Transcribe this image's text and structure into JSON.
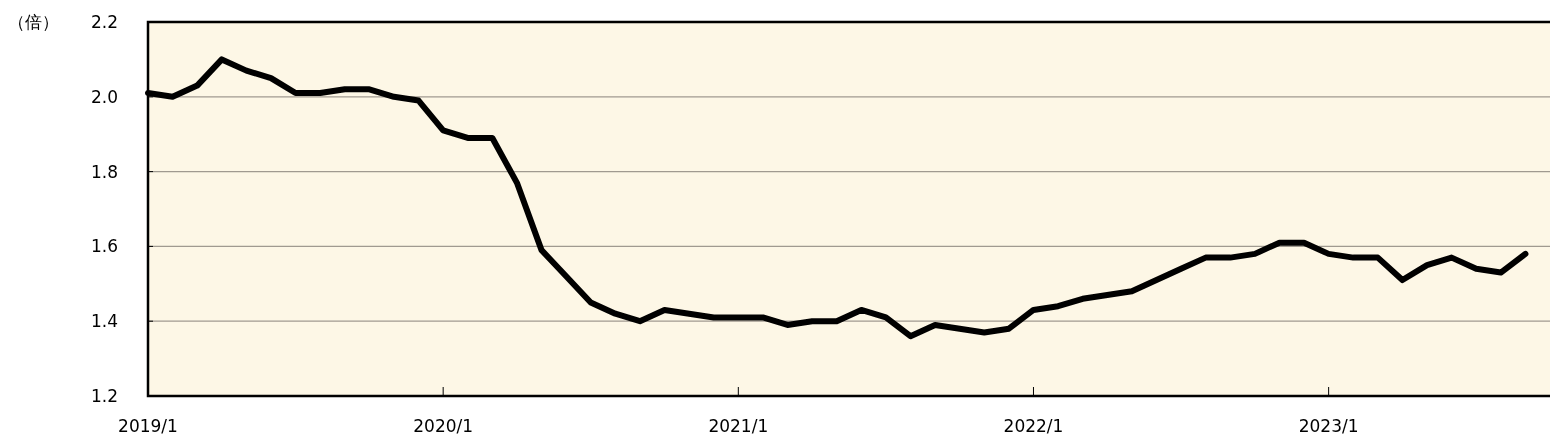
{
  "chart_data": {
    "type": "line",
    "ylabel": "（倍）",
    "x": [
      "2019-01",
      "2019-02",
      "2019-03",
      "2019-04",
      "2019-05",
      "2019-06",
      "2019-07",
      "2019-08",
      "2019-09",
      "2019-10",
      "2019-11",
      "2019-12",
      "2020-01",
      "2020-02",
      "2020-03",
      "2020-04",
      "2020-05",
      "2020-06",
      "2020-07",
      "2020-08",
      "2020-09",
      "2020-10",
      "2020-11",
      "2020-12",
      "2021-01",
      "2021-02",
      "2021-03",
      "2021-04",
      "2021-05",
      "2021-06",
      "2021-07",
      "2021-08",
      "2021-09",
      "2021-10",
      "2021-11",
      "2021-12",
      "2022-01",
      "2022-02",
      "2022-03",
      "2022-04",
      "2022-05",
      "2022-06",
      "2022-07",
      "2022-08",
      "2022-09",
      "2022-10",
      "2022-11",
      "2022-12",
      "2023-01",
      "2023-02",
      "2023-03",
      "2023-04",
      "2023-05",
      "2023-06",
      "2023-07",
      "2023-08",
      "2023-09"
    ],
    "series": [
      {
        "color": "#000000",
        "values": [
          2.01,
          2.0,
          2.03,
          2.1,
          2.07,
          2.05,
          2.01,
          2.01,
          2.02,
          2.02,
          2.0,
          1.99,
          1.91,
          1.89,
          1.89,
          1.77,
          1.59,
          1.52,
          1.45,
          1.42,
          1.4,
          1.43,
          1.42,
          1.41,
          1.41,
          1.41,
          1.39,
          1.4,
          1.4,
          1.43,
          1.41,
          1.36,
          1.39,
          1.38,
          1.37,
          1.38,
          1.43,
          1.44,
          1.46,
          1.47,
          1.48,
          1.51,
          1.54,
          1.57,
          1.57,
          1.58,
          1.61,
          1.61,
          1.58,
          1.57,
          1.57,
          1.51,
          1.55,
          1.57,
          1.54,
          1.53,
          1.58
        ]
      }
    ],
    "xlim": [
      "2019-01",
      "2023-10"
    ],
    "xticks": [
      {
        "value": "2019-01",
        "label": "2019/1"
      },
      {
        "value": "2020-01",
        "label": "2020/1"
      },
      {
        "value": "2021-01",
        "label": "2021/1"
      },
      {
        "value": "2022-01",
        "label": "2022/1"
      },
      {
        "value": "2023-01",
        "label": "2023/1"
      }
    ],
    "ylim": [
      1.2,
      2.2
    ],
    "yticks": [
      {
        "value": 1.2,
        "label": "1.2"
      },
      {
        "value": 1.4,
        "label": "1.4"
      },
      {
        "value": 1.6,
        "label": "1.6"
      },
      {
        "value": 1.8,
        "label": "1.8"
      },
      {
        "value": 2.0,
        "label": "2.0"
      },
      {
        "value": 2.2,
        "label": "2.2"
      }
    ],
    "grid": "y",
    "marker": "none",
    "line_style": "solid"
  }
}
